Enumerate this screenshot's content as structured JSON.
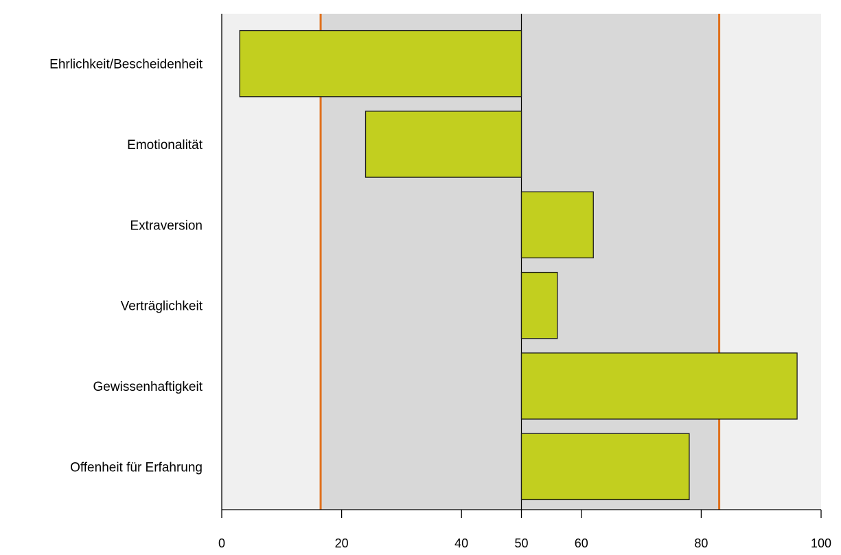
{
  "chart_data": {
    "type": "bar",
    "orientation": "horizontal",
    "baseline": 50,
    "categories": [
      "Ehrlichkeit/Bescheidenheit",
      "Emotionalität",
      "Extraversion",
      "Verträglichkeit",
      "Gewissenhaftigkeit",
      "Offenheit für Erfahrung"
    ],
    "values": [
      3,
      24,
      62,
      56,
      96,
      78
    ],
    "title": "",
    "xlabel": "",
    "ylabel": "",
    "xlim": [
      0,
      100
    ],
    "xticks": [
      0,
      20,
      40,
      50,
      60,
      80,
      100
    ],
    "xtick_labels": [
      "0",
      "20",
      "40",
      "50",
      "60",
      "80",
      "100"
    ],
    "reference_lines": [
      16.5,
      83
    ],
    "background_bands": [
      {
        "from": 0,
        "to": 16.5,
        "color": "#f0f0f0"
      },
      {
        "from": 16.5,
        "to": 83,
        "color": "#d8d8d8"
      },
      {
        "from": 83,
        "to": 100,
        "color": "#f0f0f0"
      }
    ],
    "grid": false,
    "legend": "none",
    "colors": {
      "bar_fill": "#c2cf1f",
      "bar_stroke": "#1a1a1a",
      "reference_line": "#e0701c",
      "axis": "#000000"
    }
  }
}
